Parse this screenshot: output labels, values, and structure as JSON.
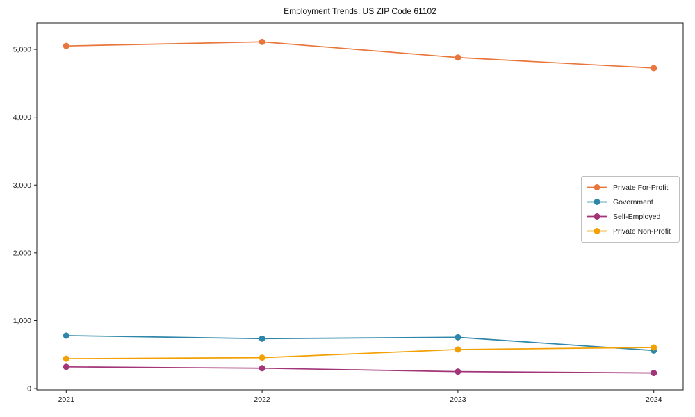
{
  "chart_data": {
    "type": "line",
    "title": "Employment Trends: US ZIP Code 61102",
    "categories": [
      "2021",
      "2022",
      "2023",
      "2024"
    ],
    "x_tick_labels": [
      "2021",
      "2022",
      "2023",
      "2024"
    ],
    "y_ticks": [
      0,
      1000,
      2000,
      3000,
      4000,
      5000
    ],
    "y_tick_labels": [
      "0",
      "1,000",
      "2,000",
      "3,000",
      "4,000",
      "5,000"
    ],
    "ylim": [
      -20,
      5390
    ],
    "grid": false,
    "legend_position": "center right",
    "background_color": "#ffffff",
    "axis_color": "#1a1a1a",
    "series": [
      {
        "name": "Private For-Profit",
        "color": "#e8763c",
        "values": [
          5050,
          5110,
          4880,
          4725
        ]
      },
      {
        "name": "Government",
        "color": "#2e87a8",
        "values": [
          780,
          735,
          755,
          560
        ]
      },
      {
        "name": "Self-Employed",
        "color": "#a23478",
        "values": [
          320,
          300,
          250,
          230
        ]
      },
      {
        "name": "Private Non-Profit",
        "color": "#f2a004",
        "values": [
          440,
          455,
          575,
          605
        ]
      }
    ]
  }
}
